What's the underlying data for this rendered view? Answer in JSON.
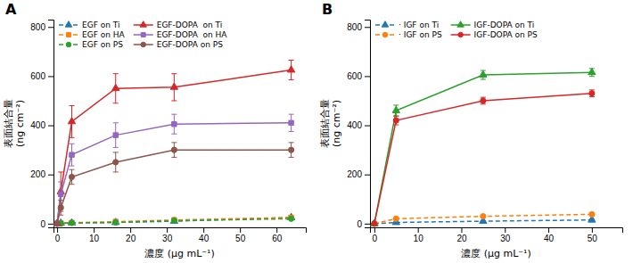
{
  "chart_data": [
    {
      "type": "line",
      "title": "A",
      "x": [
        0,
        1,
        4,
        16,
        32,
        64
      ],
      "series": [
        {
          "name": "EGF on Ti",
          "values": [
            0,
            2,
            3,
            5,
            10,
            25
          ],
          "errors": [
            0,
            1,
            1,
            2,
            3,
            4
          ],
          "marker": "triangle",
          "line_style": "dashed"
        },
        {
          "name": "EGF on HA",
          "values": [
            0,
            2,
            4,
            8,
            15,
            25
          ],
          "errors": [
            0,
            1,
            1,
            2,
            2,
            3
          ],
          "marker": "square",
          "line_style": "dashed"
        },
        {
          "name": "EGF on PS",
          "values": [
            0,
            1,
            3,
            5,
            12,
            20
          ],
          "errors": [
            0,
            1,
            1,
            1,
            2,
            3
          ],
          "marker": "circle",
          "line_style": "dashed"
        },
        {
          "name": "EGF-DOPA  on Ti",
          "values": [
            0,
            130,
            415,
            550,
            555,
            625
          ],
          "errors": [
            0,
            80,
            65,
            60,
            55,
            40
          ],
          "marker": "triangle",
          "line_style": "solid"
        },
        {
          "name": "EGF-DOPA  on HA",
          "values": [
            0,
            120,
            280,
            360,
            405,
            410
          ],
          "errors": [
            0,
            50,
            45,
            50,
            40,
            35
          ],
          "marker": "square",
          "line_style": "solid"
        },
        {
          "name": "EGF-DOPA on PS",
          "values": [
            0,
            65,
            190,
            250,
            300,
            300
          ],
          "errors": [
            0,
            30,
            30,
            40,
            30,
            30
          ],
          "marker": "circle",
          "line_style": "solid"
        }
      ],
      "xlabel": "濃度 (μg mL⁻¹)",
      "ylabel": "表面結合量\n(ng cm⁻²)",
      "xlim": [
        -1,
        68
      ],
      "ylim": [
        -15,
        830
      ],
      "xticks": [
        0,
        10,
        20,
        30,
        40,
        50,
        60
      ],
      "yticks": [
        0,
        200,
        400,
        600,
        800
      ],
      "legend": "upper left"
    },
    {
      "type": "line",
      "title": "B",
      "x": [
        0,
        5,
        25,
        50
      ],
      "series": [
        {
          "name": "· IGF on Ti",
          "values": [
            0,
            5,
            10,
            15
          ],
          "errors": [
            0,
            2,
            2,
            3
          ],
          "marker": "triangle",
          "line_style": "dashed"
        },
        {
          "name": "· IGF on PS",
          "values": [
            0,
            20,
            30,
            38
          ],
          "errors": [
            0,
            3,
            4,
            5
          ],
          "marker": "circle",
          "line_style": "dashed"
        },
        {
          "name": "IGF-DOPA on Ti",
          "values": [
            0,
            460,
            605,
            615
          ],
          "errors": [
            0,
            22,
            18,
            16
          ],
          "marker": "triangle",
          "line_style": "solid"
        },
        {
          "name": "IGF-DOPA on PS",
          "values": [
            0,
            420,
            500,
            530
          ],
          "errors": [
            0,
            18,
            14,
            14
          ],
          "marker": "circle",
          "line_style": "solid"
        }
      ],
      "xlabel": "濃度 (μg mL⁻¹)",
      "ylabel": "表面結合量\n(ng cm⁻²)",
      "xlim": [
        -1,
        57
      ],
      "ylim": [
        -15,
        830
      ],
      "xticks": [
        0,
        10,
        20,
        30,
        40,
        50
      ],
      "yticks": [
        0,
        200,
        400,
        600,
        800
      ],
      "legend": "upper left"
    }
  ]
}
